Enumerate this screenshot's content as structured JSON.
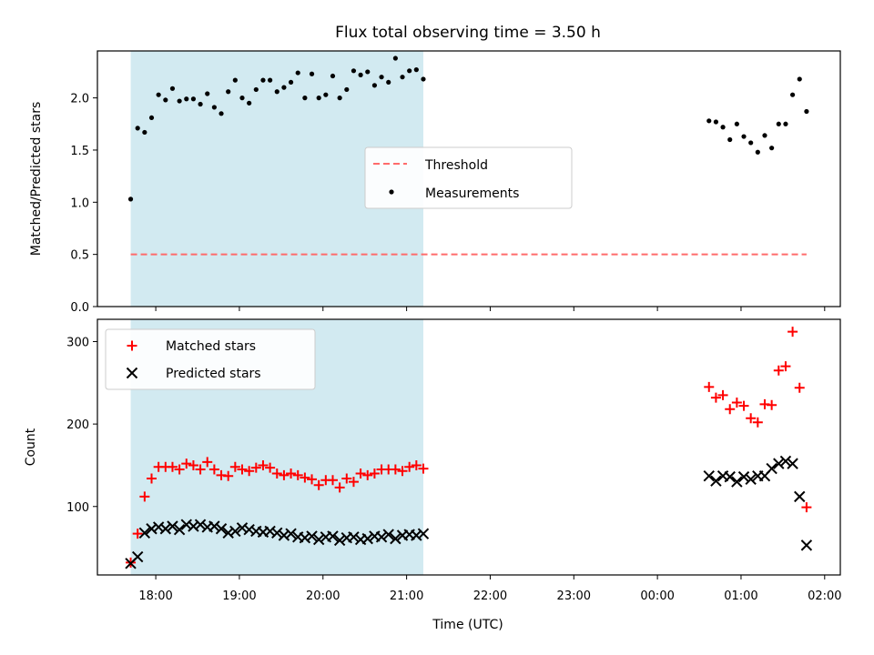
{
  "chart_data": {
    "title": "Flux total observing time = 3.50 h",
    "xlabel": "Time (UTC)",
    "x_ticks": [
      "18:00",
      "19:00",
      "20:00",
      "21:00",
      "22:00",
      "23:00",
      "00:00",
      "01:00",
      "02:00"
    ],
    "highlight_span": {
      "start": "17:42",
      "end": "21:12",
      "color": "#add8e6"
    },
    "colors": {
      "threshold": "#ff6b6b",
      "measurements": "#000000",
      "matched": "#ff0000",
      "predicted": "#000000"
    },
    "panels": [
      {
        "type": "scatter",
        "ylabel": "Matched/Predicted stars",
        "ylim": [
          0,
          2.45
        ],
        "y_ticks": [
          "0.0",
          "0.5",
          "1.0",
          "1.5",
          "2.0"
        ],
        "legend": {
          "placement": "center",
          "entries": [
            "Threshold",
            "Measurements"
          ]
        },
        "series": [
          {
            "name": "Threshold",
            "style": "dashed-line",
            "x": [
              "17:42",
              "01:47"
            ],
            "y": [
              0.5,
              0.5
            ]
          },
          {
            "name": "Measurements",
            "style": "dot",
            "x": [
              "17:42",
              "17:47",
              "17:52",
              "17:57",
              "18:02",
              "18:07",
              "18:12",
              "18:17",
              "18:22",
              "18:27",
              "18:32",
              "18:37",
              "18:42",
              "18:47",
              "18:52",
              "18:57",
              "19:02",
              "19:07",
              "19:12",
              "19:17",
              "19:22",
              "19:27",
              "19:32",
              "19:37",
              "19:42",
              "19:47",
              "19:52",
              "19:57",
              "20:02",
              "20:07",
              "20:12",
              "20:17",
              "20:22",
              "20:27",
              "20:32",
              "20:37",
              "20:42",
              "20:47",
              "20:52",
              "20:57",
              "21:02",
              "21:07",
              "21:12",
              "00:37",
              "00:42",
              "00:47",
              "00:52",
              "00:57",
              "01:02",
              "01:07",
              "01:12",
              "01:17",
              "01:22",
              "01:27",
              "01:32",
              "01:37",
              "01:42",
              "01:47"
            ],
            "y": [
              1.03,
              1.71,
              1.67,
              1.81,
              2.03,
              1.98,
              2.09,
              1.97,
              1.99,
              1.99,
              1.94,
              2.04,
              1.91,
              1.85,
              2.06,
              2.17,
              2.0,
              1.95,
              2.08,
              2.17,
              2.17,
              2.06,
              2.1,
              2.15,
              2.24,
              2.0,
              2.23,
              2.0,
              2.03,
              2.21,
              2.0,
              2.08,
              2.26,
              2.22,
              2.25,
              2.12,
              2.2,
              2.15,
              2.38,
              2.2,
              2.26,
              2.27,
              2.18,
              1.78,
              1.77,
              1.72,
              1.6,
              1.75,
              1.63,
              1.57,
              1.48,
              1.64,
              1.52,
              1.75,
              1.75,
              2.03,
              2.18,
              1.87
            ]
          }
        ]
      },
      {
        "type": "scatter",
        "ylabel": "Count",
        "ylim": [
          17,
          327
        ],
        "y_ticks": [
          "100",
          "200",
          "300"
        ],
        "legend": {
          "placement": "upper left",
          "entries": [
            "Matched stars",
            "Predicted stars"
          ]
        },
        "series": [
          {
            "name": "Matched stars",
            "marker": "+",
            "x": [
              "17:42",
              "17:47",
              "17:52",
              "17:57",
              "18:02",
              "18:07",
              "18:12",
              "18:17",
              "18:22",
              "18:27",
              "18:32",
              "18:37",
              "18:42",
              "18:47",
              "18:52",
              "18:57",
              "19:02",
              "19:07",
              "19:12",
              "19:17",
              "19:22",
              "19:27",
              "19:32",
              "19:37",
              "19:42",
              "19:47",
              "19:52",
              "19:57",
              "20:02",
              "20:07",
              "20:12",
              "20:17",
              "20:22",
              "20:27",
              "20:32",
              "20:37",
              "20:42",
              "20:47",
              "20:52",
              "20:57",
              "21:02",
              "21:07",
              "21:12",
              "00:37",
              "00:42",
              "00:47",
              "00:52",
              "00:57",
              "01:02",
              "01:07",
              "01:12",
              "01:17",
              "01:22",
              "01:27",
              "01:32",
              "01:37",
              "01:42",
              "01:47"
            ],
            "y": [
              32,
              67,
              112,
              134,
              148,
              148,
              148,
              145,
              152,
              150,
              145,
              154,
              145,
              138,
              137,
              148,
              145,
              143,
              147,
              150,
              147,
              140,
              138,
              140,
              138,
              135,
              133,
              126,
              132,
              132,
              123,
              134,
              130,
              140,
              138,
              140,
              145,
              145,
              145,
              143,
              148,
              150,
              146,
              245,
              232,
              235,
              218,
              226,
              222,
              207,
              202,
              224,
              223,
              265,
              270,
              312,
              244,
              99
            ]
          },
          {
            "name": "Predicted stars",
            "marker": "x",
            "x": [
              "17:42",
              "17:47",
              "17:52",
              "17:57",
              "18:02",
              "18:07",
              "18:12",
              "18:17",
              "18:22",
              "18:27",
              "18:32",
              "18:37",
              "18:42",
              "18:47",
              "18:52",
              "18:57",
              "19:02",
              "19:07",
              "19:12",
              "19:17",
              "19:22",
              "19:27",
              "19:32",
              "19:37",
              "19:42",
              "19:47",
              "19:52",
              "19:57",
              "20:02",
              "20:07",
              "20:12",
              "20:17",
              "20:22",
              "20:27",
              "20:32",
              "20:37",
              "20:42",
              "20:47",
              "20:52",
              "20:57",
              "21:02",
              "21:07",
              "21:12",
              "00:37",
              "00:42",
              "00:47",
              "00:52",
              "00:57",
              "01:02",
              "01:07",
              "01:12",
              "01:17",
              "01:22",
              "01:27",
              "01:32",
              "01:37",
              "01:42",
              "01:47"
            ],
            "y": [
              31,
              39,
              68,
              73,
              75,
              73,
              76,
              72,
              78,
              76,
              78,
              75,
              76,
              73,
              68,
              70,
              74,
              72,
              70,
              69,
              70,
              68,
              65,
              67,
              63,
              62,
              64,
              60,
              63,
              64,
              59,
              62,
              63,
              60,
              61,
              64,
              63,
              66,
              61,
              65,
              66,
              65,
              67,
              137,
              131,
              137,
              136,
              130,
              136,
              133,
              137,
              137,
              146,
              152,
              155,
              152,
              112,
              53
            ]
          }
        ]
      }
    ]
  }
}
